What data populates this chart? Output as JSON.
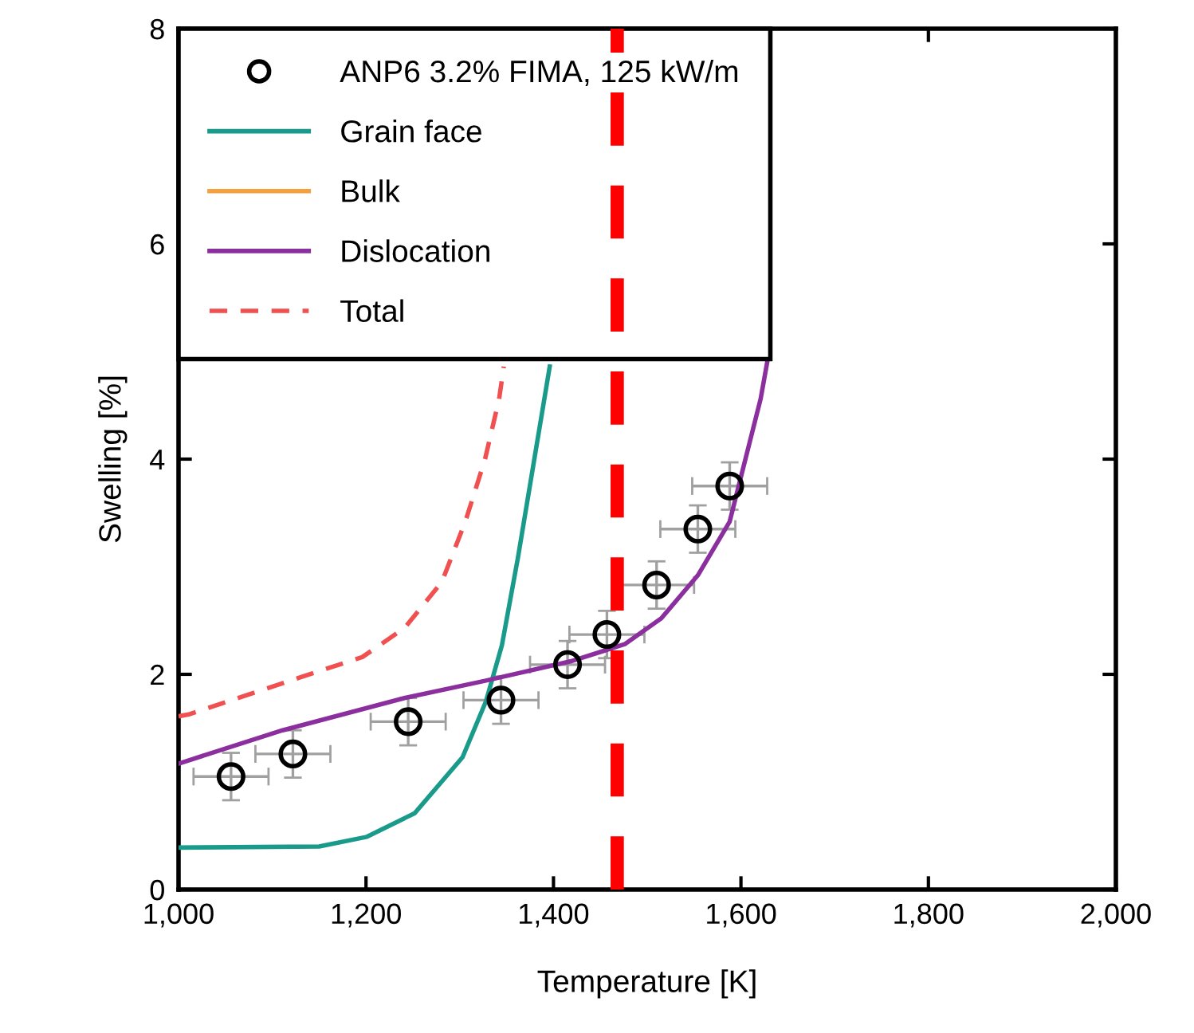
{
  "chart_data": {
    "type": "line",
    "xlabel": "Temperature [K]",
    "ylabel": "Swelling [%]",
    "xlim": [
      1000,
      2000
    ],
    "ylim": [
      0,
      8
    ],
    "xticks": [
      {
        "value": 1000,
        "label": "1,000"
      },
      {
        "value": 1200,
        "label": "1,200"
      },
      {
        "value": 1400,
        "label": "1,400"
      },
      {
        "value": 1600,
        "label": "1,600"
      },
      {
        "value": 1800,
        "label": "1,800"
      },
      {
        "value": 2000,
        "label": "2,000"
      }
    ],
    "yticks": [
      0,
      2,
      4,
      6,
      8
    ],
    "grid": false,
    "legend": "top left",
    "series": [
      {
        "name": "ANP6 3.2% FIMA, 125 kW/m",
        "type": "scatter",
        "marker": "circle",
        "color": "#000000",
        "x": [
          1056,
          1122,
          1245,
          1344,
          1415,
          1457,
          1510,
          1554,
          1588
        ],
        "values": [
          1.05,
          1.26,
          1.56,
          1.76,
          2.09,
          2.37,
          2.83,
          3.35,
          3.75
        ],
        "errors": [
          0.22,
          0.22,
          0.22,
          0.22,
          0.22,
          0.22,
          0.22,
          0.22,
          0.22
        ],
        "xerrors": [
          40,
          40,
          40,
          40,
          40,
          40,
          40,
          40,
          40
        ]
      },
      {
        "name": "Grain face",
        "color": "#1a9a8a",
        "line_style": "solid",
        "x": [
          1000,
          1150,
          1201,
          1252,
          1303,
          1328,
          1345,
          1362,
          1379,
          1396
        ],
        "values": [
          0.39,
          0.4,
          0.49,
          0.71,
          1.23,
          1.75,
          2.27,
          3.08,
          3.97,
          4.86
        ]
      },
      {
        "name": "Bulk",
        "color": "#f5a040",
        "line_style": "solid"
      },
      {
        "name": "Dislocation",
        "color": "#8b2f9e",
        "line_style": "solid",
        "x": [
          1000,
          1111,
          1241,
          1327,
          1418,
          1476,
          1515,
          1554,
          1588,
          1621,
          1628
        ],
        "values": [
          1.17,
          1.48,
          1.78,
          1.94,
          2.12,
          2.28,
          2.52,
          2.92,
          3.42,
          4.56,
          4.9
        ]
      },
      {
        "name": "Total",
        "color": "#f05050",
        "line_style": "dashed",
        "x": [
          1000,
          1012,
          1129,
          1196,
          1241,
          1281,
          1306,
          1327,
          1342,
          1347
        ],
        "values": [
          1.61,
          1.63,
          1.97,
          2.16,
          2.43,
          2.86,
          3.42,
          4.0,
          4.56,
          4.86
        ]
      }
    ],
    "ref_lines": [
      {
        "axis": "x",
        "value": 1468,
        "color": "#ff0000",
        "line_style": "dashed"
      }
    ]
  }
}
